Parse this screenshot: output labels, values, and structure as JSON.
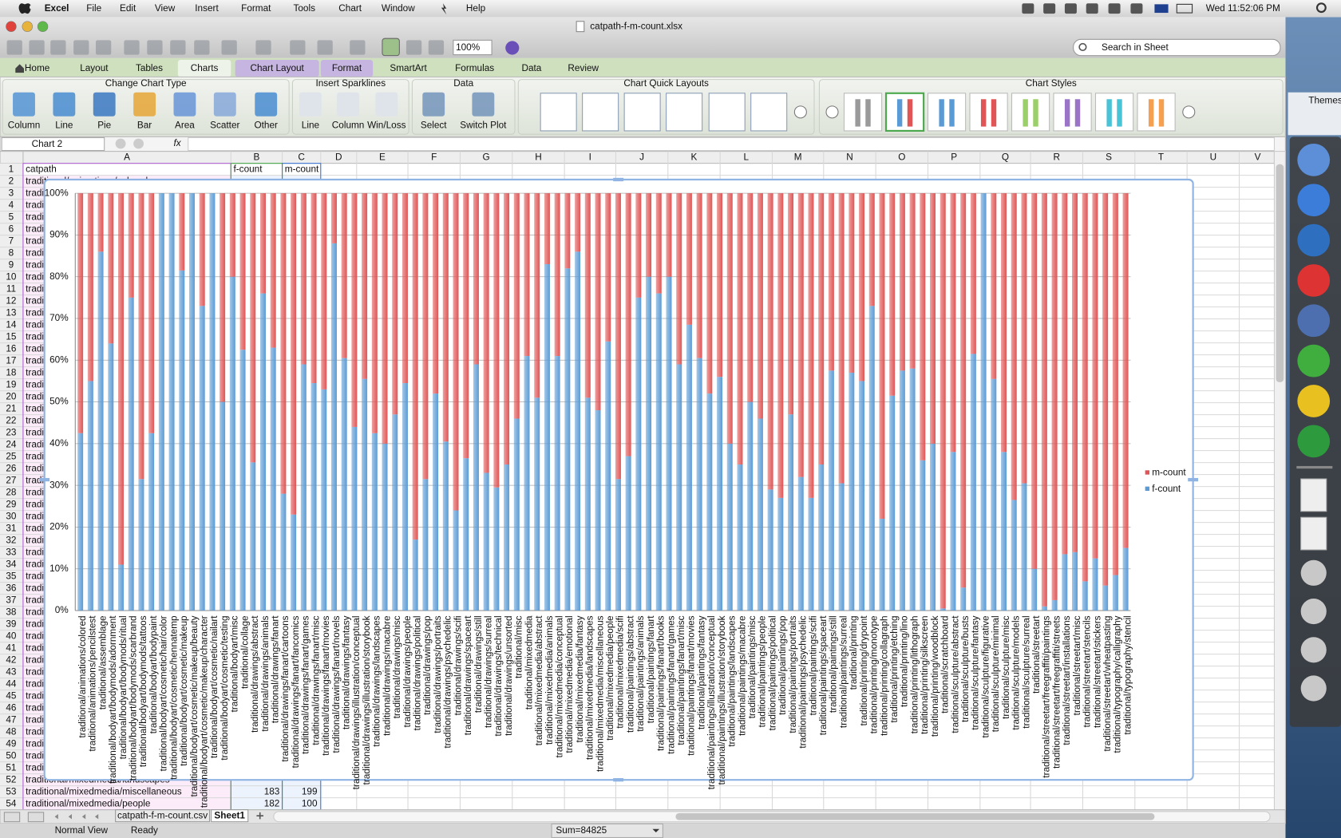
{
  "menu_bar": {
    "app": "Excel",
    "items": [
      "File",
      "Edit",
      "View",
      "Insert",
      "Format",
      "Tools",
      "Chart",
      "Window",
      "Help"
    ],
    "clock": "Wed 11:52:06 PM"
  },
  "window": {
    "title": "catpath-f-m-count.xlsx",
    "zoom": "100%",
    "search_placeholder": "Search in Sheet"
  },
  "ribbon": {
    "tabs": [
      "Home",
      "Layout",
      "Tables",
      "Charts",
      "Chart Layout",
      "Format",
      "SmartArt",
      "Formulas",
      "Data",
      "Review"
    ],
    "groups": [
      {
        "title": "Change Chart Type",
        "buttons": [
          "Column",
          "Line",
          "Pie",
          "Bar",
          "Area",
          "Scatter",
          "Other"
        ]
      },
      {
        "title": "Insert Sparklines",
        "buttons": [
          "Line",
          "Column",
          "Win/Loss"
        ]
      },
      {
        "title": "Data",
        "buttons": [
          "Select",
          "Switch Plot"
        ]
      },
      {
        "title": "Chart Quick Layouts"
      },
      {
        "title": "Chart Styles"
      }
    ]
  },
  "side_panel": {
    "label": "Themes"
  },
  "formula_bar": {
    "name_box": "Chart 2",
    "fx": "fx"
  },
  "sheet": {
    "columns": [
      "A",
      "B",
      "C",
      "D",
      "E",
      "F",
      "G",
      "H",
      "I",
      "J",
      "K",
      "L",
      "M",
      "N",
      "O",
      "P",
      "Q",
      "R",
      "S",
      "T",
      "U",
      "V"
    ],
    "rows": [
      1,
      2,
      3,
      4,
      5,
      6,
      7,
      8,
      9,
      10,
      11,
      12,
      13,
      14,
      15,
      16,
      17,
      18,
      19,
      20,
      21,
      22,
      23,
      24,
      25,
      26,
      27,
      28,
      29,
      30,
      31,
      32,
      33,
      34,
      35,
      36,
      37,
      38,
      39,
      40,
      41,
      42,
      43,
      44,
      45,
      46,
      47,
      48,
      49,
      50,
      51,
      52,
      53,
      54
    ],
    "header": [
      "catpath",
      "f-count",
      "m-count"
    ],
    "visible_counts": [
      [
        183,
        199
      ],
      [
        182,
        100
      ]
    ]
  },
  "sheet_tabs": [
    "catpath-f-m-count.csv",
    "Sheet1"
  ],
  "status_bar": {
    "view": "Normal View",
    "mode": "Ready",
    "sum": "Sum=84825"
  },
  "chart_data": {
    "type": "stacked_percent_bar",
    "legend": "right",
    "grid": true,
    "ylim": [
      0,
      100
    ],
    "yticks": [
      {
        "value": 0,
        "label": "0%"
      },
      {
        "value": 10,
        "label": "10%"
      },
      {
        "value": 20,
        "label": "20%"
      },
      {
        "value": 30,
        "label": "30%"
      },
      {
        "value": 40,
        "label": "40%"
      },
      {
        "value": 50,
        "label": "50%"
      },
      {
        "value": 60,
        "label": "60%"
      },
      {
        "value": 70,
        "label": "70%"
      },
      {
        "value": 80,
        "label": "80%"
      },
      {
        "value": 90,
        "label": "90%"
      },
      {
        "value": 100,
        "label": "100%"
      }
    ],
    "categories": [
      "traditional/animations/colored",
      "traditional/animations/pencilstest",
      "traditional/assemblage",
      "traditional/bodyart/bodymods/adornment",
      "traditional/bodyart/bodymods/ritual",
      "traditional/bodyart/bodymods/scarbrand",
      "traditional/bodyart/bodymods/tattoos",
      "traditional/bodyart/bodypaint",
      "traditional/bodyart/cosmetic/hair/color",
      "traditional/bodyart/cosmetic/hennatemp",
      "traditional/bodyart/cosmetic/makeup",
      "traditional/bodyart/cosmetic/makeup/beauty",
      "traditional/bodyart/cosmetic/makeup/character",
      "traditional/bodyart/cosmetic/nailart",
      "traditional/bodyart/cosmetic/testing",
      "traditional/bodyart/misc",
      "traditional/collage",
      "traditional/drawings/abstract",
      "traditional/drawings/animals",
      "traditional/drawings/fanart",
      "traditional/drawings/fanart/cartoons",
      "traditional/drawings/fanart/fancomics",
      "traditional/drawings/fanart/games",
      "traditional/drawings/fanart/misc",
      "traditional/drawings/fanart/movies",
      "traditional/drawings/fanart/novels",
      "traditional/drawings/fantasy",
      "traditional/drawings/illustration/conceptual",
      "traditional/drawings/illustration/storybook",
      "traditional/drawings/landscapes",
      "traditional/drawings/macabre",
      "traditional/drawings/misc",
      "traditional/drawings/people",
      "traditional/drawings/political",
      "traditional/drawings/pop",
      "traditional/drawings/portraits",
      "traditional/drawings/psychedelic",
      "traditional/drawings/scifi",
      "traditional/drawings/spaceart",
      "traditional/drawings/still",
      "traditional/drawings/surreal",
      "traditional/drawings/technical",
      "traditional/drawings/unsorted",
      "traditional/misc",
      "traditional/mixedmedia",
      "traditional/mixedmedia/abstract",
      "traditional/mixedmedia/animals",
      "traditional/mixedmedia/conceptual",
      "traditional/mixedmedia/emotional",
      "traditional/mixedmedia/fantasy",
      "traditional/mixedmedia/landscapes",
      "traditional/mixedmedia/miscellaneous",
      "traditional/mixedmedia/people",
      "traditional/mixedmedia/scifi",
      "traditional/paintings/abstract",
      "traditional/paintings/animals",
      "traditional/paintings/fanart",
      "traditional/paintings/fanart/books",
      "traditional/paintings/fanart/games",
      "traditional/paintings/fanart/misc",
      "traditional/paintings/fanart/movies",
      "traditional/paintings/fantasy",
      "traditional/paintings/illustration/conceptual",
      "traditional/paintings/illustration/storybook",
      "traditional/paintings/landscapes",
      "traditional/paintings/macabre",
      "traditional/paintings/misc",
      "traditional/paintings/people",
      "traditional/paintings/political",
      "traditional/paintings/pop",
      "traditional/paintings/portraits",
      "traditional/paintings/psychedelic",
      "traditional/paintings/scifi",
      "traditional/paintings/spaceart",
      "traditional/paintings/still",
      "traditional/paintings/surreal",
      "traditional/printing",
      "traditional/printing/drypoint",
      "traditional/printing/monotype",
      "traditional/printing/collagraph",
      "traditional/printing/etching",
      "traditional/printing/lino",
      "traditional/printing/lithograph",
      "traditional/printing/silkscreen",
      "traditional/printing/woodblock",
      "traditional/scratchboard",
      "traditional/sculpture/abstract",
      "traditional/sculpture/busts",
      "traditional/sculpture/fantasy",
      "traditional/sculpture/figurative",
      "traditional/sculpture/minimal",
      "traditional/sculpture/misc",
      "traditional/sculpture/models",
      "traditional/sculpture/surreal",
      "traditional/streetart",
      "traditional/streetart/freegraffiti/paintings",
      "traditional/streetart/freegraffiti/streets",
      "traditional/streetart/installations",
      "traditional/streetart/misc",
      "traditional/streetart/stencils",
      "traditional/streetart/stickers",
      "traditional/streetart/wheatpasting",
      "traditional/typography/calligraphy",
      "traditional/typography/stencil"
    ],
    "series": [
      {
        "name": "f-count",
        "color": "#5b9bd5",
        "values": [
          42.5,
          55,
          86,
          64,
          11,
          75,
          31.5,
          42.5,
          100,
          100,
          81.5,
          100,
          73,
          100,
          50,
          80,
          62.5,
          35.5,
          76,
          63,
          28,
          23,
          59,
          54.5,
          53,
          88,
          60.5,
          44,
          55.5,
          42.5,
          40,
          47,
          54.5,
          17,
          31.5,
          52,
          40.5,
          24,
          36.5,
          59,
          33,
          29.5,
          35,
          46,
          61,
          51,
          83,
          61,
          82,
          86,
          51,
          48,
          64.5,
          31.5,
          37,
          75,
          80,
          76,
          80,
          59,
          68.5,
          60.5,
          52,
          56,
          40,
          35,
          50,
          46,
          29,
          27,
          47,
          32,
          27,
          35,
          57.5,
          30.5,
          57,
          55,
          73,
          22,
          51.5,
          57.5,
          58,
          36,
          40,
          0.5,
          38,
          5.5,
          61.5,
          100,
          55.5,
          38,
          26.5,
          30.5,
          10,
          1,
          2.5,
          13.5,
          14,
          7,
          12.5,
          6,
          8.5,
          15
        ]
      },
      {
        "name": "m-count",
        "color": "#e05555",
        "values": [
          57.5,
          45,
          14,
          36,
          89,
          25,
          68.5,
          57.5,
          0,
          0,
          18.5,
          0,
          27,
          0,
          50,
          20,
          37.5,
          64.5,
          24,
          37,
          72,
          77,
          41,
          45.5,
          47,
          12,
          39.5,
          56,
          44.5,
          57.5,
          60,
          53,
          45.5,
          83,
          68.5,
          48,
          59.5,
          76,
          63.5,
          41,
          67,
          70.5,
          65,
          54,
          39,
          49,
          17,
          39,
          18,
          14,
          49,
          52,
          35.5,
          68.5,
          63,
          25,
          20,
          24,
          20,
          41,
          31.5,
          39.5,
          48,
          44,
          60,
          65,
          50,
          54,
          71,
          73,
          53,
          68,
          73,
          65,
          42.5,
          69.5,
          43,
          45,
          27,
          78,
          48.5,
          42.5,
          42,
          64,
          60,
          99.5,
          62,
          94.5,
          38.5,
          0,
          44.5,
          62,
          73.5,
          69.5,
          90,
          99,
          97.5,
          86.5,
          86,
          93,
          87.5,
          94,
          91.5,
          85
        ]
      }
    ]
  }
}
